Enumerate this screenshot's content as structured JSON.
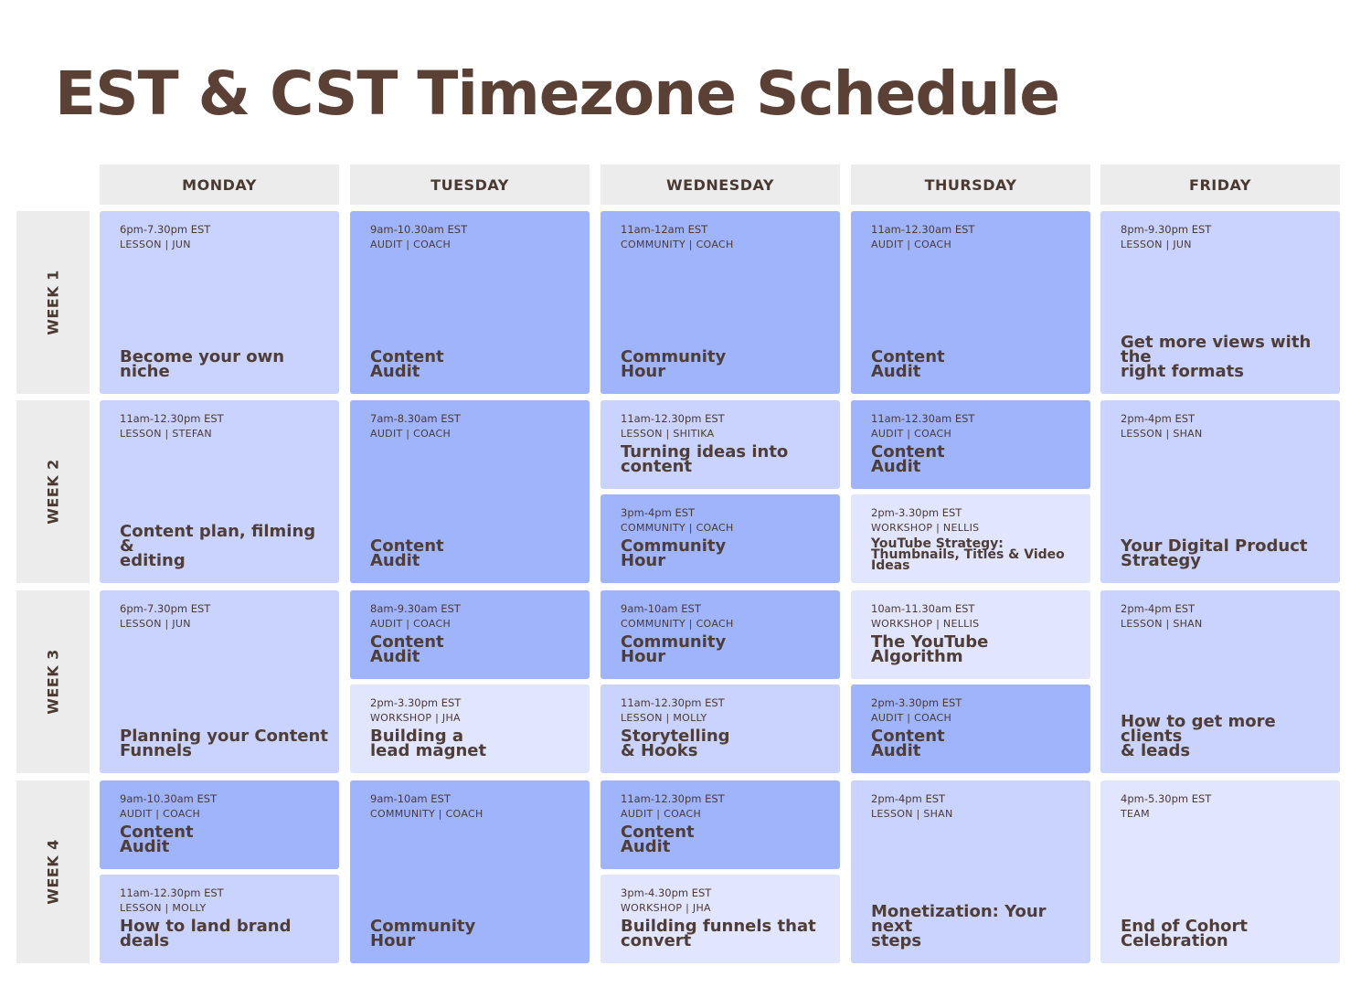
{
  "page_title": "EST & CST Timezone Schedule",
  "days": [
    "MONDAY",
    "TUESDAY",
    "WEDNESDAY",
    "THURSDAY",
    "FRIDAY"
  ],
  "weeks": [
    "WEEK 1",
    "WEEK 2",
    "WEEK 3",
    "WEEK 4"
  ],
  "colors": {
    "light": "#c9d3fd",
    "medium": "#a0b4fb",
    "pale": "#e1e5fd",
    "header": "#ececec",
    "title": "#5b4135"
  },
  "cells": [
    {
      "week": 0,
      "day": 0,
      "time": "6pm-7.30pm EST",
      "category": "LESSON | JUN",
      "title": "Become your own\nniche",
      "color": "light"
    },
    {
      "week": 0,
      "day": 1,
      "time": "9am-10.30am EST",
      "category": "AUDIT | COACH",
      "title": "Content\nAudit",
      "color": "medium"
    },
    {
      "week": 0,
      "day": 2,
      "time": "11am-12am EST",
      "category": "COMMUNITY | COACH",
      "title": "Community\nHour",
      "color": "medium"
    },
    {
      "week": 0,
      "day": 3,
      "time": "11am-12.30am EST",
      "category": "AUDIT | COACH",
      "title": "Content\nAudit",
      "color": "medium"
    },
    {
      "week": 0,
      "day": 4,
      "time": "8pm-9.30pm EST",
      "category": "LESSON | JUN",
      "title": "Get more views with the\nright formats",
      "color": "light",
      "offset": 1
    },
    {
      "week": 1,
      "day": 0,
      "time": "11am-12.30pm EST",
      "category": "LESSON | STEFAN",
      "title": "Content plan, filming &\nediting",
      "color": "light"
    },
    {
      "week": 1,
      "day": 1,
      "time": "7am-8.30am EST",
      "category": "AUDIT | COACH",
      "title": "Content\nAudit",
      "color": "medium"
    },
    {
      "week": 1,
      "day": 2,
      "half": 0,
      "time": "11am-12.30pm EST",
      "category": "LESSON | SHITIKA",
      "title": "Turning ideas into\ncontent",
      "color": "light"
    },
    {
      "week": 1,
      "day": 2,
      "half": 1,
      "time": "3pm-4pm EST",
      "category": "COMMUNITY | COACH",
      "title": "Community\nHour",
      "color": "medium"
    },
    {
      "week": 1,
      "day": 3,
      "half": 0,
      "time": "11am-12.30am EST",
      "category": "AUDIT | COACH",
      "title": "Content\nAudit",
      "color": "medium"
    },
    {
      "week": 1,
      "day": 3,
      "half": 1,
      "time": "2pm-3.30pm EST",
      "category": "WORKSHOP | NELLIS",
      "title": "YouTube Strategy:\nThumbnails, Titles & Video\nIdeas",
      "color": "pale",
      "small": true
    },
    {
      "week": 1,
      "day": 4,
      "time": "2pm-4pm EST",
      "category": "LESSON | SHAN",
      "title": "Your Digital Product\nStrategy",
      "color": "light"
    },
    {
      "week": 2,
      "day": 0,
      "time": "6pm-7.30pm EST",
      "category": "LESSON | JUN",
      "title": "Planning your Content\nFunnels",
      "color": "light"
    },
    {
      "week": 2,
      "day": 1,
      "half": 0,
      "time": "8am-9.30am EST",
      "category": "AUDIT | COACH",
      "title": "Content\nAudit",
      "color": "medium"
    },
    {
      "week": 2,
      "day": 1,
      "half": 1,
      "time": "2pm-3.30pm EST",
      "category": "WORKSHOP | JHA",
      "title": "Building a\nlead magnet",
      "color": "pale"
    },
    {
      "week": 2,
      "day": 2,
      "half": 0,
      "time": "9am-10am EST",
      "category": "COMMUNITY | COACH",
      "title": "Community\nHour",
      "color": "medium"
    },
    {
      "week": 2,
      "day": 2,
      "half": 1,
      "time": "11am-12.30pm EST",
      "category": "LESSON | MOLLY",
      "title": "Storytelling\n& Hooks",
      "color": "light"
    },
    {
      "week": 2,
      "day": 3,
      "half": 0,
      "time": "10am-11.30am EST",
      "category": "WORKSHOP | NELLIS",
      "title": "The YouTube\nAlgorithm",
      "color": "pale"
    },
    {
      "week": 2,
      "day": 3,
      "half": 1,
      "time": "2pm-3.30pm EST",
      "category": "AUDIT | COACH",
      "title": "Content\nAudit",
      "color": "medium"
    },
    {
      "week": 2,
      "day": 4,
      "time": "2pm-4pm EST",
      "category": "LESSON | SHAN",
      "title": "How to get more clients\n& leads",
      "color": "light"
    },
    {
      "week": 3,
      "day": 0,
      "half": 0,
      "time": "9am-10.30am EST",
      "category": "AUDIT | COACH",
      "title": "Content\nAudit",
      "color": "medium"
    },
    {
      "week": 3,
      "day": 0,
      "half": 1,
      "time": "11am-12.30pm EST",
      "category": "LESSON | MOLLY",
      "title": "How to land brand\ndeals",
      "color": "light"
    },
    {
      "week": 3,
      "day": 1,
      "time": "9am-10am EST",
      "category": "COMMUNITY | COACH",
      "title": "Community\nHour",
      "color": "medium"
    },
    {
      "week": 3,
      "day": 2,
      "half": 0,
      "time": "11am-12.30pm EST",
      "category": "AUDIT | COACH",
      "title": "Content\nAudit",
      "color": "medium"
    },
    {
      "week": 3,
      "day": 2,
      "half": 1,
      "time": "3pm-4.30pm EST",
      "category": "WORKSHOP | JHA",
      "title": "Building funnels that\nconvert",
      "color": "pale"
    },
    {
      "week": 3,
      "day": 3,
      "time": "2pm-4pm EST",
      "category": "LESSON | SHAN",
      "title": "Monetization: Your next\nsteps",
      "color": "light"
    },
    {
      "week": 3,
      "day": 4,
      "time": "4pm-5.30pm EST",
      "category": "TEAM",
      "title": "End of Cohort\nCelebration",
      "color": "pale"
    }
  ]
}
